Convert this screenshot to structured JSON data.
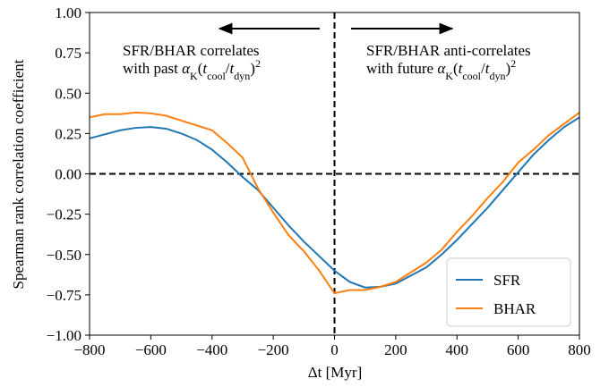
{
  "chart_data": {
    "type": "line",
    "xlabel": "Δt [Myr]",
    "ylabel": "Spearman rank correlation coefficient",
    "x": [
      -800,
      -750,
      -700,
      -650,
      -600,
      -550,
      -500,
      -450,
      -400,
      -350,
      -300,
      -250,
      -200,
      -150,
      -100,
      -50,
      0,
      50,
      100,
      150,
      200,
      250,
      300,
      350,
      400,
      450,
      500,
      550,
      600,
      650,
      700,
      750,
      800
    ],
    "series": [
      {
        "name": "SFR",
        "color": "#1f77b4",
        "values": [
          0.22,
          0.245,
          0.27,
          0.285,
          0.29,
          0.28,
          0.25,
          0.21,
          0.15,
          0.07,
          -0.02,
          -0.1,
          -0.21,
          -0.32,
          -0.42,
          -0.51,
          -0.6,
          -0.67,
          -0.705,
          -0.7,
          -0.68,
          -0.63,
          -0.58,
          -0.5,
          -0.41,
          -0.31,
          -0.21,
          -0.1,
          0.01,
          0.12,
          0.21,
          0.29,
          0.35
        ]
      },
      {
        "name": "BHAR",
        "color": "#ff7f0e",
        "values": [
          0.35,
          0.37,
          0.37,
          0.38,
          0.375,
          0.36,
          0.33,
          0.3,
          0.27,
          0.19,
          0.1,
          -0.09,
          -0.24,
          -0.38,
          -0.48,
          -0.6,
          -0.74,
          -0.72,
          -0.72,
          -0.7,
          -0.67,
          -0.61,
          -0.55,
          -0.47,
          -0.36,
          -0.26,
          -0.15,
          -0.05,
          0.07,
          0.15,
          0.24,
          0.31,
          0.38
        ]
      }
    ],
    "xlim": [
      -800,
      800
    ],
    "ylim": [
      -1,
      1
    ],
    "xticks": [
      {
        "value": -800,
        "label": "−800"
      },
      {
        "value": -600,
        "label": "−600"
      },
      {
        "value": -400,
        "label": "−400"
      },
      {
        "value": -200,
        "label": "−200"
      },
      0,
      200,
      400,
      600,
      800
    ],
    "yticks": [
      {
        "value": -1,
        "label": "−1.00"
      },
      {
        "value": -0.75,
        "label": "−0.75"
      },
      {
        "value": -0.5,
        "label": "−0.50"
      },
      {
        "value": -0.25,
        "label": "−0.25"
      },
      {
        "value": 0,
        "label": "0.00"
      },
      {
        "value": 0.25,
        "label": "0.25"
      },
      {
        "value": 0.5,
        "label": "0.50"
      },
      {
        "value": 0.75,
        "label": "0.75"
      },
      {
        "value": 1,
        "label": "1.00"
      }
    ],
    "reference_lines": {
      "x": 0,
      "y": 0
    },
    "legend": "lower right",
    "annotations": [
      {
        "lines": [
          [
            {
              "text": "SFR/BHAR correlates",
              "style": "normal"
            }
          ],
          [
            {
              "text": "with past ",
              "style": "normal"
            },
            {
              "text": "α",
              "style": "italic"
            },
            {
              "text": "K",
              "style": "sub"
            },
            {
              "text": "(",
              "style": "normal"
            },
            {
              "text": "t",
              "style": "italic"
            },
            {
              "text": "cool",
              "style": "sub"
            },
            {
              "text": "/",
              "style": "normal"
            },
            {
              "text": "t",
              "style": "italic"
            },
            {
              "text": "dyn",
              "style": "sub"
            },
            {
              "text": ")",
              "style": "normal"
            },
            {
              "text": "2",
              "style": "sup"
            }
          ]
        ]
      },
      {
        "lines": [
          [
            {
              "text": "SFR/BHAR anti-correlates",
              "style": "normal"
            }
          ],
          [
            {
              "text": "with future ",
              "style": "normal"
            },
            {
              "text": "α",
              "style": "italic"
            },
            {
              "text": "K",
              "style": "sub"
            },
            {
              "text": "(",
              "style": "normal"
            },
            {
              "text": "t",
              "style": "italic"
            },
            {
              "text": "cool",
              "style": "sub"
            },
            {
              "text": "/",
              "style": "normal"
            },
            {
              "text": "t",
              "style": "italic"
            },
            {
              "text": "dyn",
              "style": "sub"
            },
            {
              "text": ")",
              "style": "normal"
            },
            {
              "text": "2",
              "style": "sup"
            }
          ]
        ]
      }
    ]
  }
}
